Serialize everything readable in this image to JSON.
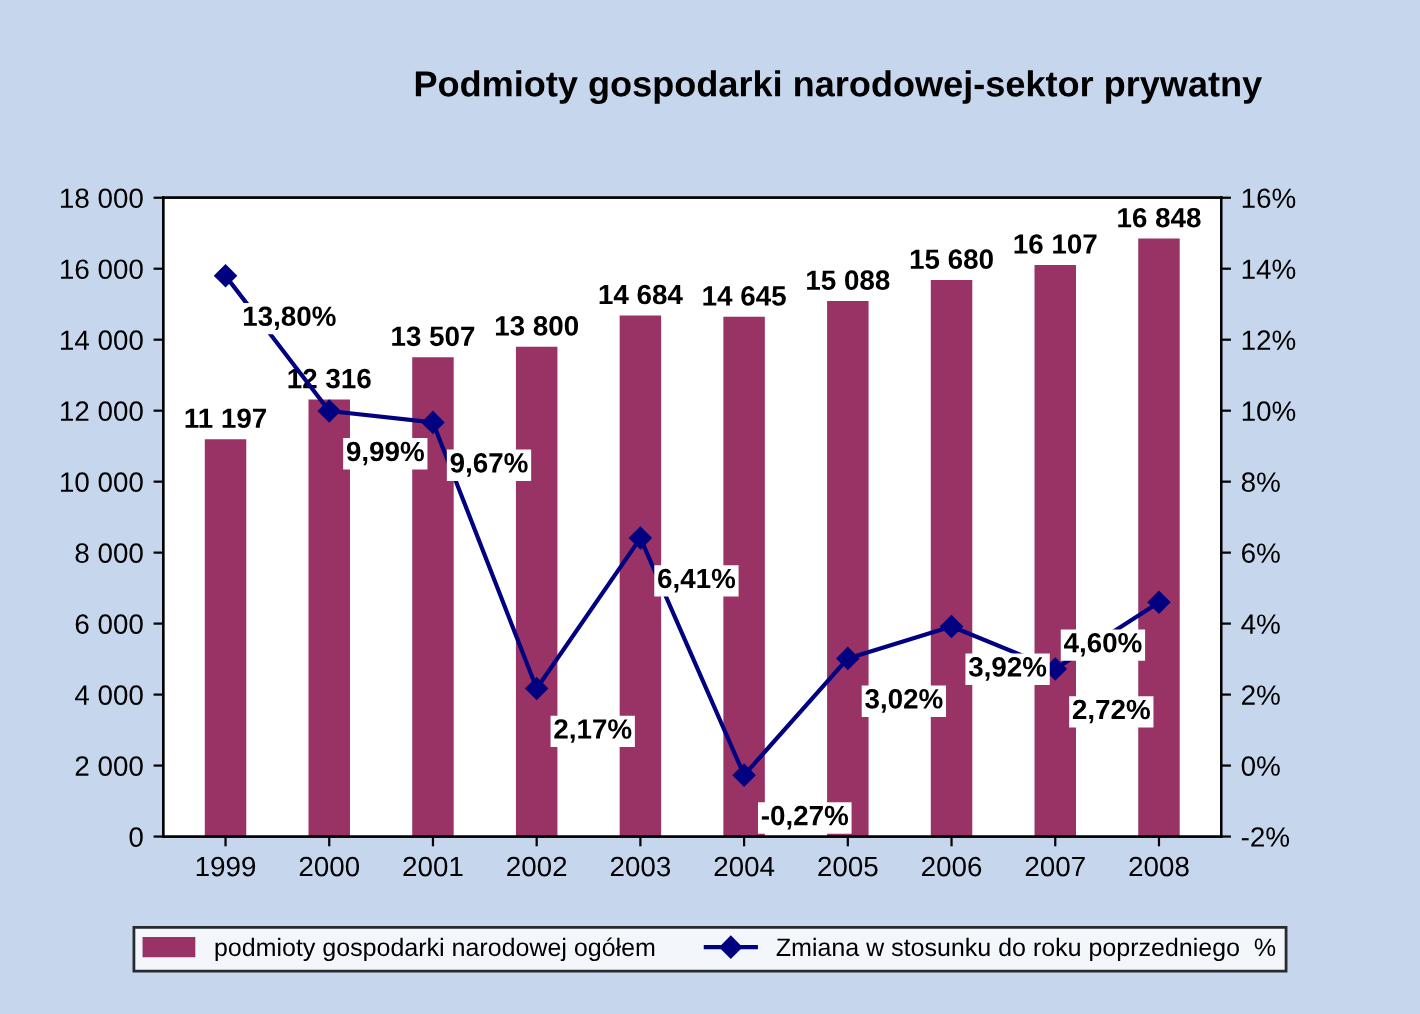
{
  "chart_data": {
    "type": "bar",
    "title": "Podmioty gospodarki narodowej-sektor prywatny",
    "categories": [
      "1999",
      "2000",
      "2001",
      "2002",
      "2003",
      "2004",
      "2005",
      "2006",
      "2007",
      "2008"
    ],
    "series": [
      {
        "name": "podmioty gospodarki narodowej ogółem",
        "color": "#993366",
        "values": [
          11197,
          12316,
          13507,
          13800,
          14684,
          14645,
          15088,
          15680,
          16107,
          16848
        ],
        "value_labels": [
          "11 197",
          "12 316",
          "13 507",
          "13 800",
          "14 684",
          "14 645",
          "15 088",
          "15 680",
          "16 107",
          "16 848"
        ]
      },
      {
        "name": "Zmiana w stosunku do roku poprzedniego  %",
        "type": "line",
        "axis": "y2",
        "color": "#000080",
        "marker": "diamond",
        "values": [
          13.8,
          9.99,
          9.67,
          2.17,
          6.41,
          -0.27,
          3.02,
          3.92,
          2.72,
          4.6
        ],
        "value_labels": [
          "13,80%",
          "9,99%",
          "9,67%",
          "2,17%",
          "6,41%",
          "-0,27%",
          "3,02%",
          "3,92%",
          "2,72%",
          "4,60%"
        ]
      }
    ],
    "ylim": [
      0,
      18000
    ],
    "yticks": [
      0,
      {
        "value": 2000,
        "label": "2 000"
      },
      {
        "value": 4000,
        "label": "4 000"
      },
      {
        "value": 6000,
        "label": "6 000"
      },
      {
        "value": 8000,
        "label": "8 000"
      },
      {
        "value": 10000,
        "label": "10 000"
      },
      {
        "value": 12000,
        "label": "12 000"
      },
      {
        "value": 14000,
        "label": "14 000"
      },
      {
        "value": 16000,
        "label": "16 000"
      },
      {
        "value": 18000,
        "label": "18 000"
      }
    ],
    "y2lim": [
      -2,
      16
    ],
    "y2ticks": [
      {
        "value": -2,
        "label": "-2%"
      },
      {
        "value": 0,
        "label": "0%"
      },
      {
        "value": 2,
        "label": "2%"
      },
      {
        "value": 4,
        "label": "4%"
      },
      {
        "value": 6,
        "label": "6%"
      },
      {
        "value": 8,
        "label": "8%"
      },
      {
        "value": 10,
        "label": "10%"
      },
      {
        "value": 12,
        "label": "12%"
      },
      {
        "value": 14,
        "label": "14%"
      },
      {
        "value": 16,
        "label": "16%"
      }
    ],
    "legend": "bottom",
    "grid": false
  }
}
